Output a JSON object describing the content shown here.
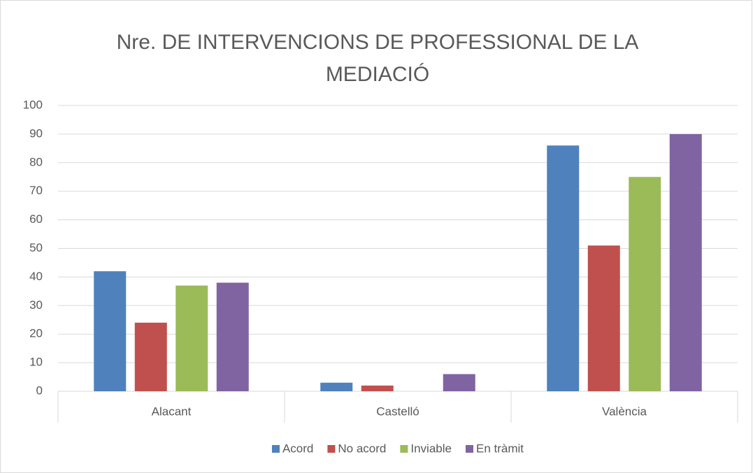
{
  "chart_data": {
    "type": "bar",
    "title": "Nre. DE INTERVENCIONS DE PROFESSIONAL DE LA MEDIACIÓ",
    "categories": [
      "Alacant",
      "Castelló",
      "València"
    ],
    "series": [
      {
        "name": "Acord",
        "color": "#4f81bd",
        "values": [
          42,
          3,
          86
        ]
      },
      {
        "name": "No acord",
        "color": "#c0504d",
        "values": [
          24,
          2,
          51
        ]
      },
      {
        "name": "Inviable",
        "color": "#9bbb59",
        "values": [
          37,
          0,
          75
        ]
      },
      {
        "name": "En tràmit",
        "color": "#8064a2",
        "values": [
          38,
          6,
          90
        ]
      }
    ],
    "ylim": [
      0,
      100
    ],
    "yticks": [
      0,
      10,
      20,
      30,
      40,
      50,
      60,
      70,
      80,
      90,
      100
    ],
    "grid": true,
    "legend": "bottom"
  }
}
